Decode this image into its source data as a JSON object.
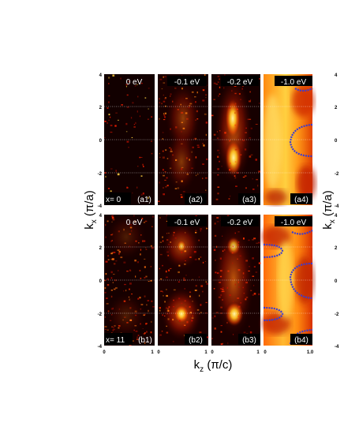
{
  "figure": {
    "ylabel_base": "k",
    "ylabel_sub": "x",
    "ylabel_unit": " (π/a)",
    "xlabel_base": "k",
    "xlabel_sub": "z",
    "xlabel_unit": " (π/c)",
    "y_ticks": [
      "4",
      "2",
      "0",
      "-2",
      "-4"
    ],
    "x_ticks": [
      "0",
      "1"
    ],
    "x_ticks_last": [
      "0",
      "1.0"
    ],
    "row_labels": {
      "top": "x= 0",
      "bottom": "x= 11"
    },
    "top_row": [
      {
        "energy": "0 eV",
        "panel": "(a1)"
      },
      {
        "energy": "-0.1 eV",
        "panel": "(a2)"
      },
      {
        "energy": "-0.2 eV",
        "panel": "(a3)"
      },
      {
        "energy": "-1.0 eV",
        "panel": "(a4)"
      }
    ],
    "bottom_row": [
      {
        "energy": "0 eV",
        "panel": "(b1)"
      },
      {
        "energy": "-0.1 eV",
        "panel": "(b2)"
      },
      {
        "energy": "-0.2 eV",
        "panel": "(b3)"
      },
      {
        "energy": "-1.0 eV",
        "panel": "(b4)"
      }
    ],
    "colors": {
      "dark": "#140000",
      "hot_mid": "#e03000",
      "hot_bright": "#ffe050",
      "contour": "#3b3bd0"
    }
  }
}
